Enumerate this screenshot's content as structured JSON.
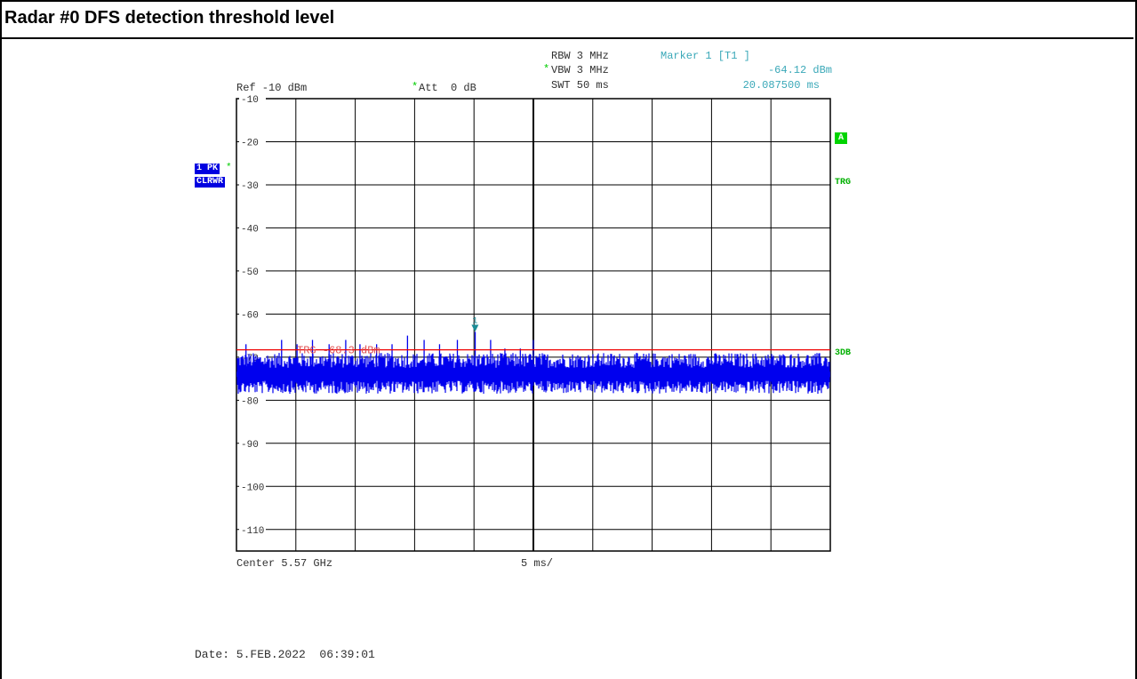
{
  "page": {
    "title": "Radar #0 DFS detection threshold level"
  },
  "header": {
    "rbw": "RBW 3 MHz",
    "vbw": "VBW 3 MHz",
    "swt": "SWT 50 ms",
    "ref": "Ref -10 dBm",
    "att": "Att  0 dB",
    "star": "*",
    "marker_label": "Marker 1 [T1 ]",
    "marker_level": "-64.12 dBm",
    "marker_time": "20.087500 ms"
  },
  "left_badges": {
    "trace": "1 PK",
    "mode": "CLRWR",
    "star": "*"
  },
  "right_badges": {
    "a": "A",
    "trg": "TRG",
    "three_db": "3DB"
  },
  "footer": {
    "center": "Center 5.57 GHz",
    "span": "5 ms/",
    "date": "Date: 5.FEB.2022  06:39:01"
  },
  "colors": {
    "trace": "#0000ee",
    "threshold": "#ee0000",
    "marker": "#1a8c96",
    "grid": "#000000"
  },
  "chart_data": {
    "type": "line",
    "title": "Radar #0 DFS detection threshold level",
    "xlabel": "",
    "ylabel": "",
    "x_unit": "ms",
    "xlim": [
      0,
      50
    ],
    "ylim": [
      -115,
      -10
    ],
    "y_ticks": [
      -10,
      -20,
      -30,
      -40,
      -50,
      -60,
      -70,
      -80,
      -90,
      -100,
      -110
    ],
    "y_tick_labels": [
      "-10",
      "-20",
      "-30",
      "-40",
      "-50",
      "-60",
      "-70",
      "-80",
      "-90",
      "-100",
      "-110"
    ],
    "grid": true,
    "noise_floor_dbm": -74,
    "threshold": {
      "label": "TRG -68.3 dBm",
      "value": -68.3
    },
    "marker": {
      "name": "1",
      "x_ms": 20.0875,
      "y_dbm": -64.12
    },
    "pulses": [
      {
        "x": 0.8,
        "y": -67
      },
      {
        "x": 3.8,
        "y": -66
      },
      {
        "x": 5.1,
        "y": -67
      },
      {
        "x": 6.4,
        "y": -66
      },
      {
        "x": 7.8,
        "y": -67
      },
      {
        "x": 9.2,
        "y": -66
      },
      {
        "x": 10.4,
        "y": -67
      },
      {
        "x": 11.8,
        "y": -67
      },
      {
        "x": 13.1,
        "y": -67
      },
      {
        "x": 14.4,
        "y": -65
      },
      {
        "x": 15.8,
        "y": -66
      },
      {
        "x": 17.1,
        "y": -67
      },
      {
        "x": 18.6,
        "y": -66
      },
      {
        "x": 20.1,
        "y": -64.12
      },
      {
        "x": 21.4,
        "y": -66
      },
      {
        "x": 22.6,
        "y": -68
      },
      {
        "x": 23.9,
        "y": -68
      },
      {
        "x": 25.0,
        "y": -66
      }
    ]
  }
}
